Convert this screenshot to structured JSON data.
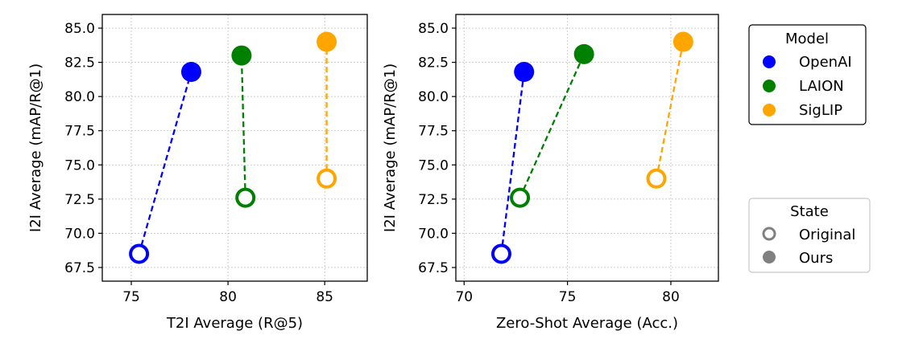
{
  "colors": {
    "OpenAI": "#0000ff",
    "LAION": "#008000",
    "SigLIP": "#ffa500",
    "state_marker": "#808080"
  },
  "chart_data": [
    {
      "type": "scatter",
      "xlabel": "T2I Average (R@5)",
      "ylabel": "I2I Average (mAP/R@1)",
      "xlim": [
        73.5,
        87.2
      ],
      "ylim": [
        66.5,
        86.0
      ],
      "xticks": [
        75,
        80,
        85
      ],
      "yticks": [
        67.5,
        70.0,
        72.5,
        75.0,
        77.5,
        80.0,
        82.5,
        85.0
      ],
      "grid": true,
      "series": [
        {
          "name": "OpenAI",
          "original": [
            75.4,
            68.5
          ],
          "ours": [
            78.1,
            81.8
          ]
        },
        {
          "name": "LAION",
          "original": [
            80.9,
            72.6
          ],
          "ours": [
            80.7,
            83.0
          ]
        },
        {
          "name": "SigLIP",
          "original": [
            85.1,
            74.0
          ],
          "ours": [
            85.1,
            84.0
          ]
        }
      ]
    },
    {
      "type": "scatter",
      "xlabel": "Zero-Shot Average (Acc.)",
      "ylabel": "I2I Average (mAP/R@1)",
      "xlim": [
        69.6,
        82.3
      ],
      "ylim": [
        66.5,
        86.0
      ],
      "xticks": [
        70,
        75,
        80
      ],
      "yticks": [
        67.5,
        70.0,
        72.5,
        75.0,
        77.5,
        80.0,
        82.5,
        85.0
      ],
      "grid": true,
      "series": [
        {
          "name": "OpenAI",
          "original": [
            71.8,
            68.5
          ],
          "ours": [
            72.9,
            81.8
          ]
        },
        {
          "name": "LAION",
          "original": [
            72.7,
            72.6
          ],
          "ours": [
            75.8,
            83.1
          ]
        },
        {
          "name": "SigLIP",
          "original": [
            79.3,
            74.0
          ],
          "ours": [
            80.6,
            84.0
          ]
        }
      ]
    }
  ],
  "legends": {
    "model": {
      "title": "Model",
      "placement": "upper-right",
      "items": [
        "OpenAI",
        "LAION",
        "SigLIP"
      ]
    },
    "state": {
      "title": "State",
      "placement": "lower-right",
      "items": [
        "Original",
        "Ours"
      ]
    }
  }
}
